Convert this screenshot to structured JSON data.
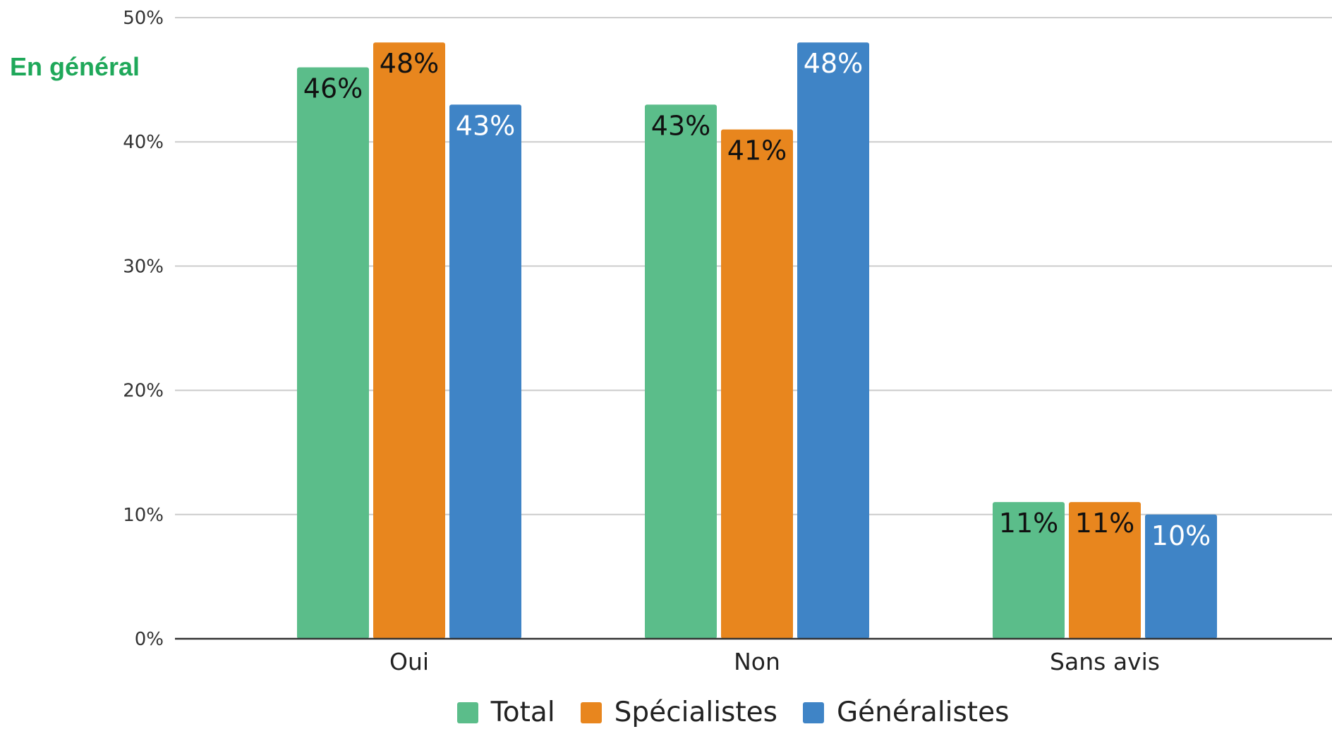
{
  "side_title": "En général",
  "colors": {
    "side_title": "#1fa85a",
    "grid": "#cccccc",
    "axis": "#333333",
    "tick_text": "#333333",
    "label_dark": "#111111",
    "label_light": "#ffffff"
  },
  "chart_data": {
    "type": "bar",
    "title": "",
    "xlabel": "",
    "ylabel": "",
    "categories": [
      "Oui",
      "Non",
      "Sans avis"
    ],
    "series": [
      {
        "name": "Total",
        "color": "#5bbd8a",
        "values": [
          46,
          43,
          11
        ],
        "labels": [
          "46%",
          "43%",
          "11%"
        ],
        "label_color": "dark"
      },
      {
        "name": "Spécialistes",
        "color": "#e8861e",
        "values": [
          48,
          41,
          11
        ],
        "labels": [
          "48%",
          "41%",
          "11%"
        ],
        "label_color": "dark"
      },
      {
        "name": "Généralistes",
        "color": "#3f84c6",
        "values": [
          43,
          48,
          10
        ],
        "labels": [
          "43%",
          "48%",
          "10%"
        ],
        "label_color": "light"
      }
    ],
    "ylim": [
      0,
      50
    ],
    "yticks": [
      0,
      10,
      20,
      30,
      40,
      50
    ],
    "ytick_labels": [
      "0%",
      "10%",
      "20%",
      "30%",
      "40%",
      "50%"
    ],
    "grid": true,
    "legend_position": "bottom"
  }
}
